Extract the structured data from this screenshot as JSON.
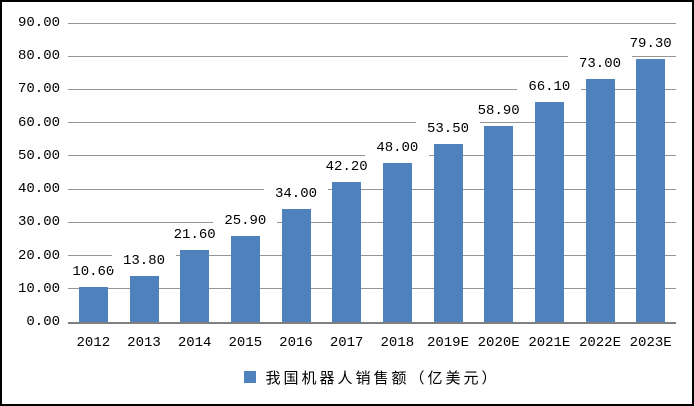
{
  "chart_data": {
    "type": "bar",
    "title": "",
    "categories": [
      "2012",
      "2013",
      "2014",
      "2015",
      "2016",
      "2017",
      "2018",
      "2019E",
      "2020E",
      "2021E",
      "2022E",
      "2023E"
    ],
    "values": [
      10.6,
      13.8,
      21.6,
      25.9,
      34.0,
      42.2,
      48.0,
      53.5,
      58.9,
      66.1,
      73.0,
      79.3
    ],
    "value_labels": [
      "10.60",
      "13.80",
      "21.60",
      "25.90",
      "34.00",
      "42.20",
      "48.00",
      "53.50",
      "58.90",
      "66.10",
      "73.00",
      "79.30"
    ],
    "y_ticks": [
      "0.00",
      "10.00",
      "20.00",
      "30.00",
      "40.00",
      "50.00",
      "60.00",
      "70.00",
      "80.00",
      "90.00"
    ],
    "ylim": [
      0,
      90
    ],
    "grid": true,
    "xlabel": "",
    "ylabel": "",
    "legend": "我国机器人销售额（亿美元）",
    "legend_position": "bottom-center",
    "colors": {
      "bar": "#4F81BD",
      "gridline": "#969696",
      "axis": "#808080",
      "text": "#000000",
      "background": "#ffffff",
      "border": "#000000"
    }
  }
}
